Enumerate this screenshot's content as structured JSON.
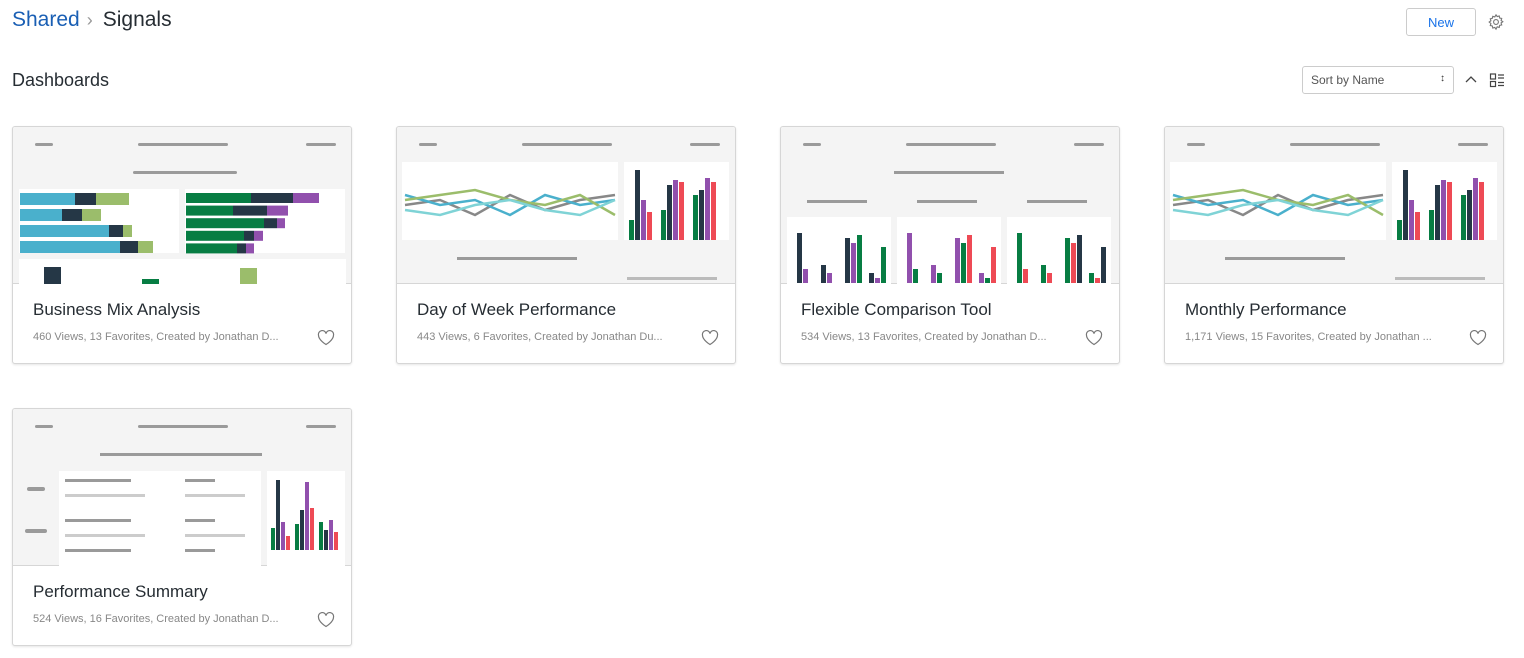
{
  "breadcrumb": {
    "parent": "Shared",
    "current": "Signals"
  },
  "header": {
    "new_label": "New",
    "settings_icon": "gear-icon"
  },
  "section": {
    "title": "Dashboards",
    "sort_value": "Sort by Name"
  },
  "colors": {
    "link": "#1a5fb4",
    "accent": "#1a73e8",
    "blue": "#4ab0cc",
    "navy": "#253746",
    "lime": "#9bbd6b",
    "green": "#077d43",
    "purple": "#9150ad",
    "red": "#ee4a55",
    "gray": "#888888",
    "teal": "#7fd3d6"
  },
  "dashboards": [
    {
      "title": "Business Mix Analysis",
      "meta": "460 Views, 13 Favorites, Created by Jonathan D...",
      "thumb": "bars"
    },
    {
      "title": "Day of Week Performance",
      "meta": "443 Views, 6 Favorites, Created by Jonathan Du...",
      "thumb": "lines"
    },
    {
      "title": "Flexible Comparison Tool",
      "meta": "534 Views, 13 Favorites, Created by Jonathan D...",
      "thumb": "columns"
    },
    {
      "title": "Monthly Performance",
      "meta": "1,171 Views, 15 Favorites, Created by Jonathan ...",
      "thumb": "lines"
    },
    {
      "title": "Performance Summary",
      "meta": "524 Views, 16 Favorites, Created by Jonathan D...",
      "thumb": "table"
    }
  ]
}
